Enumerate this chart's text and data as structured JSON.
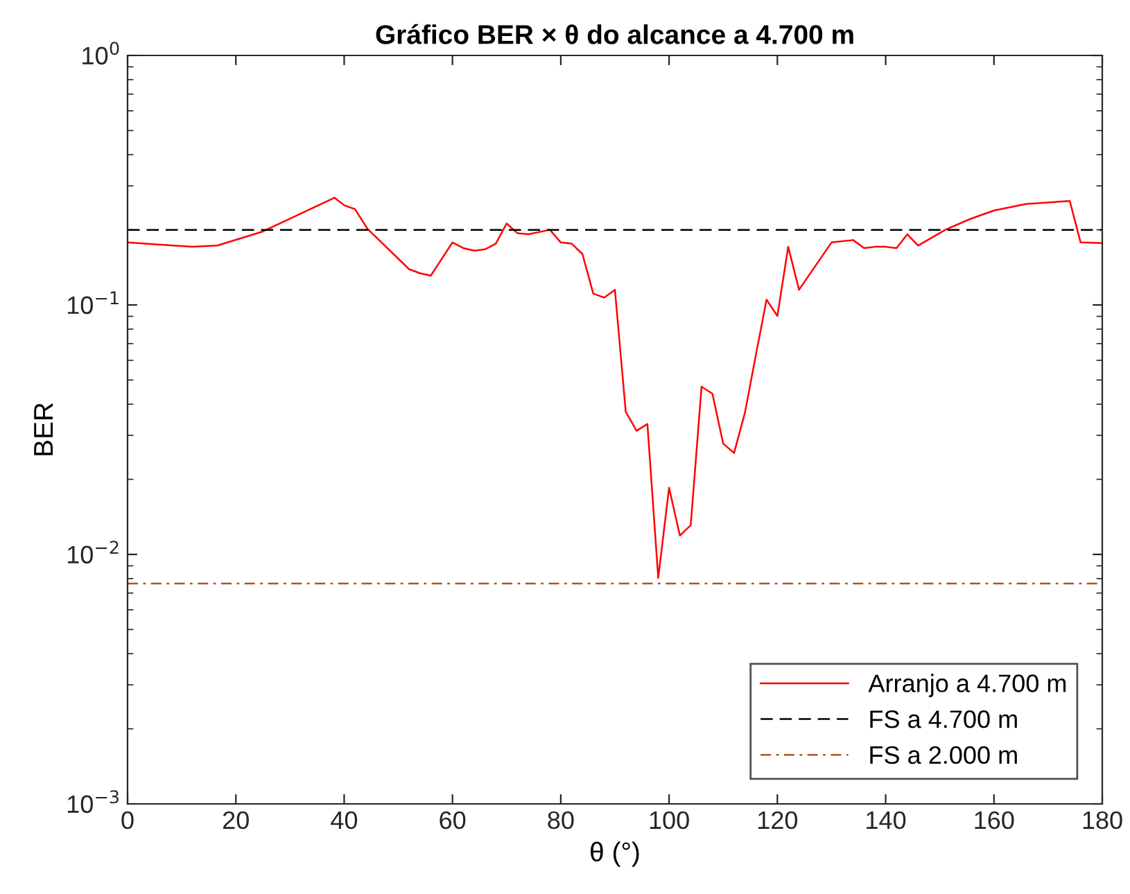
{
  "chart_data": {
    "type": "line",
    "title": "Gráfico BER × θ do alcance a 4.700 m",
    "xlabel": "θ (°)",
    "ylabel": "BER",
    "log": "y",
    "xlim": [
      0,
      180
    ],
    "xticks": [
      0,
      20,
      40,
      60,
      80,
      100,
      120,
      140,
      160,
      180
    ],
    "ylim": [
      0.001,
      1
    ],
    "yticks": [
      {
        "value": 0.001,
        "label": "10$^{−3}$"
      },
      {
        "value": 0.01,
        "label": "10$^{−2}$"
      },
      {
        "value": 0.1,
        "label": "10$^{−1}$"
      },
      {
        "value": 1,
        "label": "10$^{0}$"
      }
    ],
    "grid": false,
    "legend": "bottom right",
    "marker": "none",
    "line_style": "solid",
    "series": [
      {
        "name": "Arranjo a 4.700 m",
        "color": "#ff0000",
        "x": [
          0,
          12,
          16.6,
          25,
          38.2,
          40,
          42,
          44.3,
          52,
          54,
          56,
          60,
          62,
          64,
          66,
          68,
          70,
          72,
          74,
          78,
          80,
          82,
          84,
          86,
          88,
          90,
          92,
          94,
          96,
          98,
          100,
          102,
          104,
          106,
          108,
          110,
          112,
          114,
          116,
          118,
          120,
          122,
          124,
          130,
          134,
          136,
          138,
          140,
          142,
          144,
          146,
          151,
          155.6,
          160,
          166,
          174,
          176,
          180
        ],
        "values": [
          0.178,
          0.171,
          0.173,
          0.197,
          0.269,
          0.251,
          0.242,
          0.202,
          0.139,
          0.134,
          0.131,
          0.178,
          0.169,
          0.165,
          0.167,
          0.176,
          0.212,
          0.194,
          0.192,
          0.2,
          0.178,
          0.176,
          0.16,
          0.111,
          0.107,
          0.115,
          0.0373,
          0.0313,
          0.0333,
          0.00805,
          0.0185,
          0.0119,
          0.0131,
          0.047,
          0.0441,
          0.0278,
          0.0255,
          0.0369,
          0.0625,
          0.105,
          0.0903,
          0.171,
          0.115,
          0.178,
          0.182,
          0.169,
          0.171,
          0.171,
          0.169,
          0.192,
          0.173,
          0.2,
          0.221,
          0.239,
          0.254,
          0.261,
          0.178,
          0.177
        ]
      }
    ],
    "ref_lines": [
      {
        "axis": "y",
        "value": 0.2,
        "label": "FS a 4.700 m",
        "color": "#000000",
        "line_style": "dashed"
      },
      {
        "axis": "y",
        "value": 0.00764,
        "label": "FS a 2.000 m",
        "color": "#b5521f",
        "line_style": "dashdot"
      }
    ]
  }
}
